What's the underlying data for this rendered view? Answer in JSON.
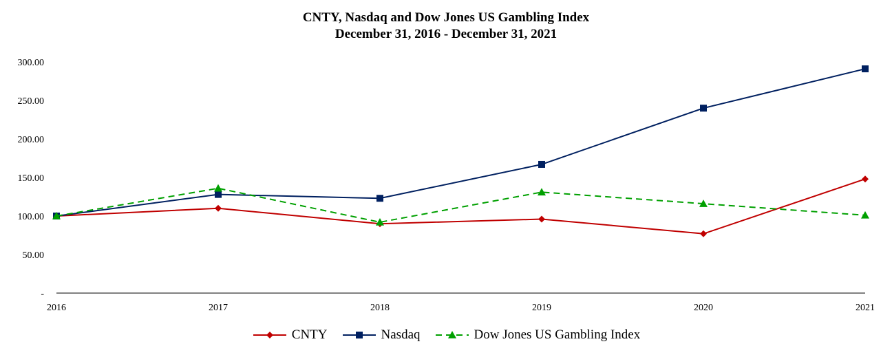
{
  "title": {
    "line1": "CNTY, Nasdaq and Dow Jones US Gambling Index",
    "line2": "December 31, 2016 - December 31, 2021"
  },
  "chart_data": {
    "type": "line",
    "title": "CNTY, Nasdaq and Dow Jones US Gambling Index",
    "subtitle": "December 31, 2016 - December 31, 2021",
    "categories": [
      "2016",
      "2017",
      "2018",
      "2019",
      "2020",
      "2021"
    ],
    "y_ticks": [
      "-",
      "50.00",
      "100.00",
      "150.00",
      "200.00",
      "250.00",
      "300.00"
    ],
    "ylim": [
      0,
      300
    ],
    "grid": false,
    "legend_position": "bottom",
    "series": [
      {
        "name": "CNTY",
        "color": "#c00000",
        "marker": "diamond",
        "dash": "solid",
        "values": [
          100,
          110,
          90,
          96,
          77,
          148
        ]
      },
      {
        "name": "Nasdaq",
        "color": "#002060",
        "marker": "square",
        "dash": "solid",
        "values": [
          100,
          128,
          123,
          167,
          240,
          291
        ]
      },
      {
        "name": "Dow Jones US Gambling Index",
        "color": "#00a000",
        "marker": "triangle",
        "dash": "dashed",
        "values": [
          100,
          136,
          92,
          131,
          116,
          101
        ]
      }
    ]
  }
}
